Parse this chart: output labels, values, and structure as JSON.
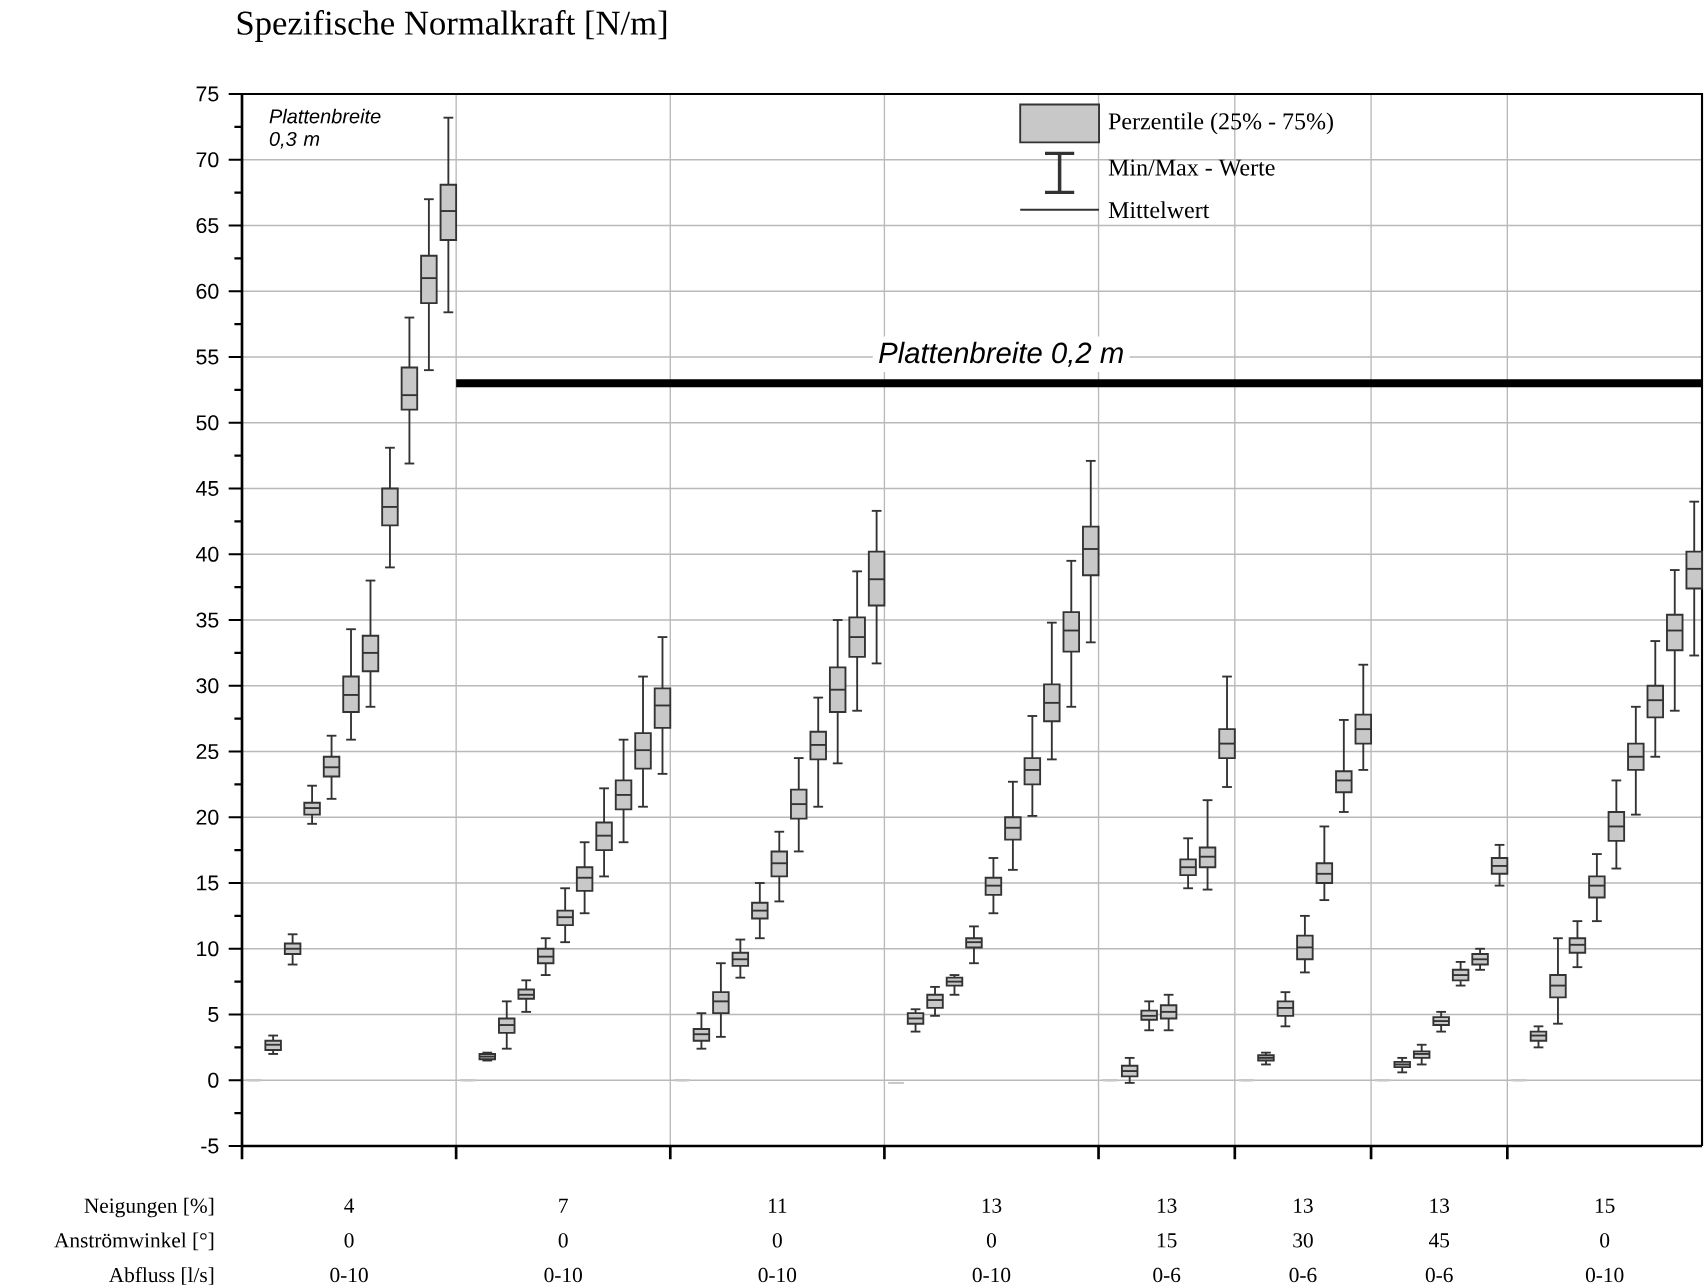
{
  "chart_data": {
    "type": "box",
    "title": "Spezifische Normalkraft [N/m]",
    "categories": [
      null,
      null,
      null,
      null,
      null,
      null,
      null,
      null,
      null,
      null,
      null,
      null,
      null,
      null,
      null,
      null,
      null,
      null,
      null,
      null,
      null,
      null,
      null,
      null,
      null,
      null,
      null,
      null,
      null,
      null,
      null,
      null,
      null,
      null,
      null,
      null,
      null,
      null,
      null,
      null,
      null,
      null,
      null,
      null,
      null,
      null,
      null,
      null,
      null,
      null,
      null,
      null,
      null,
      null,
      null,
      null,
      null,
      null,
      null,
      null,
      null,
      null,
      null,
      null,
      null,
      null,
      null,
      null,
      null,
      null,
      null,
      null,
      null,
      null,
      null
    ],
    "series": [
      {
        "name": "Perzentile (25% - 75%)",
        "color": "#c8c8c8",
        "boxes": [
          {
            "low": 0,
            "q1": 0,
            "median": 0,
            "q3": 0,
            "high": 0
          },
          {
            "low": 2.0,
            "q1": 2.3,
            "median": 2.7,
            "q3": 3.0,
            "high": 3.4
          },
          {
            "low": 8.8,
            "q1": 9.6,
            "median": 10.0,
            "q3": 10.4,
            "high": 11.1
          },
          {
            "low": 19.5,
            "q1": 20.2,
            "median": 20.7,
            "q3": 21.1,
            "high": 22.4
          },
          {
            "low": 21.4,
            "q1": 23.1,
            "median": 23.8,
            "q3": 24.6,
            "high": 26.2
          },
          {
            "low": 25.9,
            "q1": 28.0,
            "median": 29.3,
            "q3": 30.7,
            "high": 34.3
          },
          {
            "low": 28.4,
            "q1": 31.1,
            "median": 32.5,
            "q3": 33.8,
            "high": 38.0
          },
          {
            "low": 39.0,
            "q1": 42.2,
            "median": 43.6,
            "q3": 45.0,
            "high": 48.1
          },
          {
            "low": 46.9,
            "q1": 51.0,
            "median": 52.1,
            "q3": 54.2,
            "high": 58.0
          },
          {
            "low": 54.0,
            "q1": 59.1,
            "median": 61.0,
            "q3": 62.7,
            "high": 67.0
          },
          {
            "low": 58.4,
            "q1": 63.9,
            "median": 66.1,
            "q3": 68.1,
            "high": 73.2
          },
          {
            "low": 0,
            "q1": 0,
            "median": 0,
            "q3": 0,
            "high": 0
          },
          {
            "low": 1.5,
            "q1": 1.6,
            "median": 1.8,
            "q3": 2.0,
            "high": 2.1
          },
          {
            "low": 2.4,
            "q1": 3.6,
            "median": 4.2,
            "q3": 4.7,
            "high": 6.0
          },
          {
            "low": 5.2,
            "q1": 6.2,
            "median": 6.5,
            "q3": 6.9,
            "high": 7.6
          },
          {
            "low": 8.0,
            "q1": 8.9,
            "median": 9.4,
            "q3": 10.0,
            "high": 10.8
          },
          {
            "low": 10.5,
            "q1": 11.8,
            "median": 12.4,
            "q3": 12.9,
            "high": 14.6
          },
          {
            "low": 12.7,
            "q1": 14.4,
            "median": 15.4,
            "q3": 16.2,
            "high": 18.1
          },
          {
            "low": 15.5,
            "q1": 17.5,
            "median": 18.6,
            "q3": 19.6,
            "high": 22.2
          },
          {
            "low": 18.1,
            "q1": 20.6,
            "median": 21.7,
            "q3": 22.8,
            "high": 25.9
          },
          {
            "low": 20.8,
            "q1": 23.7,
            "median": 25.1,
            "q3": 26.4,
            "high": 30.7
          },
          {
            "low": 23.3,
            "q1": 26.8,
            "median": 28.5,
            "q3": 29.8,
            "high": 33.7
          },
          {
            "low": 0,
            "q1": 0,
            "median": 0,
            "q3": 0,
            "high": 0
          },
          {
            "low": 2.4,
            "q1": 3.0,
            "median": 3.5,
            "q3": 3.9,
            "high": 5.1
          },
          {
            "low": 3.3,
            "q1": 5.1,
            "median": 6.0,
            "q3": 6.7,
            "high": 8.9
          },
          {
            "low": 7.8,
            "q1": 8.7,
            "median": 9.2,
            "q3": 9.7,
            "high": 10.7
          },
          {
            "low": 10.8,
            "q1": 12.3,
            "median": 12.9,
            "q3": 13.5,
            "high": 15.0
          },
          {
            "low": 13.6,
            "q1": 15.5,
            "median": 16.5,
            "q3": 17.4,
            "high": 18.9
          },
          {
            "low": 17.4,
            "q1": 19.9,
            "median": 21.0,
            "q3": 22.1,
            "high": 24.5
          },
          {
            "low": 20.8,
            "q1": 24.4,
            "median": 25.5,
            "q3": 26.5,
            "high": 29.1
          },
          {
            "low": 24.1,
            "q1": 28.0,
            "median": 29.7,
            "q3": 31.4,
            "high": 35.0
          },
          {
            "low": 28.1,
            "q1": 32.2,
            "median": 33.7,
            "q3": 35.2,
            "high": 38.7
          },
          {
            "low": 31.7,
            "q1": 36.1,
            "median": 38.1,
            "q3": 40.2,
            "high": 43.3
          },
          {
            "low": -0.2,
            "q1": -0.2,
            "median": -0.2,
            "q3": -0.2,
            "high": -0.2
          },
          {
            "low": 3.7,
            "q1": 4.3,
            "median": 4.7,
            "q3": 5.1,
            "high": 5.4
          },
          {
            "low": 4.9,
            "q1": 5.5,
            "median": 6.1,
            "q3": 6.5,
            "high": 7.1
          },
          {
            "low": 6.5,
            "q1": 7.2,
            "median": 7.5,
            "q3": 7.8,
            "high": 8.0
          },
          {
            "low": 8.9,
            "q1": 10.1,
            "median": 10.5,
            "q3": 10.8,
            "high": 11.7
          },
          {
            "low": 12.7,
            "q1": 14.1,
            "median": 14.8,
            "q3": 15.4,
            "high": 16.9
          },
          {
            "low": 16.0,
            "q1": 18.3,
            "median": 19.2,
            "q3": 20.0,
            "high": 22.7
          },
          {
            "low": 20.1,
            "q1": 22.5,
            "median": 23.6,
            "q3": 24.5,
            "high": 27.7
          },
          {
            "low": 24.4,
            "q1": 27.3,
            "median": 28.7,
            "q3": 30.1,
            "high": 34.8
          },
          {
            "low": 28.4,
            "q1": 32.6,
            "median": 34.2,
            "q3": 35.6,
            "high": 39.5
          },
          {
            "low": 33.3,
            "q1": 38.4,
            "median": 40.4,
            "q3": 42.1,
            "high": 47.1
          },
          {
            "low": 0,
            "q1": 0,
            "median": 0,
            "q3": 0,
            "high": 0
          },
          {
            "low": -0.2,
            "q1": 0.3,
            "median": 0.7,
            "q3": 1.1,
            "high": 1.7
          },
          {
            "low": 3.8,
            "q1": 4.6,
            "median": 4.9,
            "q3": 5.3,
            "high": 6.0
          },
          {
            "low": 3.8,
            "q1": 4.7,
            "median": 5.2,
            "q3": 5.7,
            "high": 6.5
          },
          {
            "low": 14.6,
            "q1": 15.6,
            "median": 16.2,
            "q3": 16.8,
            "high": 18.4
          },
          {
            "low": 14.5,
            "q1": 16.2,
            "median": 17.0,
            "q3": 17.7,
            "high": 21.3
          },
          {
            "low": 22.3,
            "q1": 24.5,
            "median": 25.6,
            "q3": 26.7,
            "high": 30.7
          },
          {
            "low": 0,
            "q1": 0,
            "median": 0,
            "q3": 0,
            "high": 0
          },
          {
            "low": 1.2,
            "q1": 1.5,
            "median": 1.7,
            "q3": 1.9,
            "high": 2.1
          },
          {
            "low": 4.1,
            "q1": 4.9,
            "median": 5.5,
            "q3": 6.0,
            "high": 6.7
          },
          {
            "low": 8.2,
            "q1": 9.2,
            "median": 10.1,
            "q3": 11.0,
            "high": 12.5
          },
          {
            "low": 13.7,
            "q1": 15.0,
            "median": 15.7,
            "q3": 16.5,
            "high": 19.3
          },
          {
            "low": 20.4,
            "q1": 21.9,
            "median": 22.8,
            "q3": 23.5,
            "high": 27.4
          },
          {
            "low": 23.6,
            "q1": 25.6,
            "median": 26.7,
            "q3": 27.8,
            "high": 31.6
          },
          {
            "low": 0,
            "q1": 0,
            "median": 0,
            "q3": 0,
            "high": 0
          },
          {
            "low": 0.6,
            "q1": 1.0,
            "median": 1.2,
            "q3": 1.4,
            "high": 1.7
          },
          {
            "low": 1.2,
            "q1": 1.7,
            "median": 2.0,
            "q3": 2.2,
            "high": 2.7
          },
          {
            "low": 3.7,
            "q1": 4.2,
            "median": 4.5,
            "q3": 4.8,
            "high": 5.2
          },
          {
            "low": 7.2,
            "q1": 7.6,
            "median": 8.0,
            "q3": 8.4,
            "high": 9.0
          },
          {
            "low": 8.4,
            "q1": 8.8,
            "median": 9.2,
            "q3": 9.6,
            "high": 10.0
          },
          {
            "low": 14.8,
            "q1": 15.7,
            "median": 16.3,
            "q3": 16.9,
            "high": 17.9
          },
          {
            "low": 0,
            "q1": 0,
            "median": 0,
            "q3": 0,
            "high": 0
          },
          {
            "low": 2.5,
            "q1": 3.0,
            "median": 3.4,
            "q3": 3.7,
            "high": 4.1
          },
          {
            "low": 4.3,
            "q1": 6.3,
            "median": 7.2,
            "q3": 8.0,
            "high": 10.8
          },
          {
            "low": 8.6,
            "q1": 9.7,
            "median": 10.3,
            "q3": 10.8,
            "high": 12.1
          },
          {
            "low": 12.1,
            "q1": 13.9,
            "median": 14.8,
            "q3": 15.5,
            "high": 17.2
          },
          {
            "low": 16.1,
            "q1": 18.2,
            "median": 19.3,
            "q3": 20.4,
            "high": 22.8
          },
          {
            "low": 20.2,
            "q1": 23.6,
            "median": 24.6,
            "q3": 25.6,
            "high": 28.4
          },
          {
            "low": 24.6,
            "q1": 27.6,
            "median": 28.9,
            "q3": 30.0,
            "high": 33.4
          },
          {
            "low": 28.1,
            "q1": 32.7,
            "median": 34.2,
            "q3": 35.4,
            "high": 38.8
          },
          {
            "low": 32.3,
            "q1": 37.4,
            "median": 38.9,
            "q3": 40.2,
            "high": 44.0
          }
        ]
      }
    ],
    "ylim": [
      -5,
      75
    ],
    "yticks": [
      -5,
      0,
      5,
      10,
      15,
      20,
      25,
      30,
      35,
      40,
      45,
      50,
      55,
      60,
      65,
      70,
      75
    ],
    "grid": true,
    "legend": "top right",
    "ref_lines": [
      {
        "axis": "y",
        "value": 53,
        "label": "Plattenbreite 0,2 m",
        "color": "#000000"
      }
    ],
    "annotations": [
      "Plattenbreite 0,3 m",
      "Min/Max - Werte",
      "Mittelwert",
      "Neigungen [%]",
      "Anströmwinkel [°]",
      "Abfluss [l/s]",
      "4",
      "0",
      "0-10",
      "7",
      "0",
      "0-10",
      "11",
      "0",
      "0-10",
      "13",
      "0",
      "0-10",
      "13",
      "15",
      "0-6",
      "13",
      "30",
      "0-6",
      "13",
      "45",
      "0-6",
      "15",
      "0",
      "0-10"
    ]
  }
}
